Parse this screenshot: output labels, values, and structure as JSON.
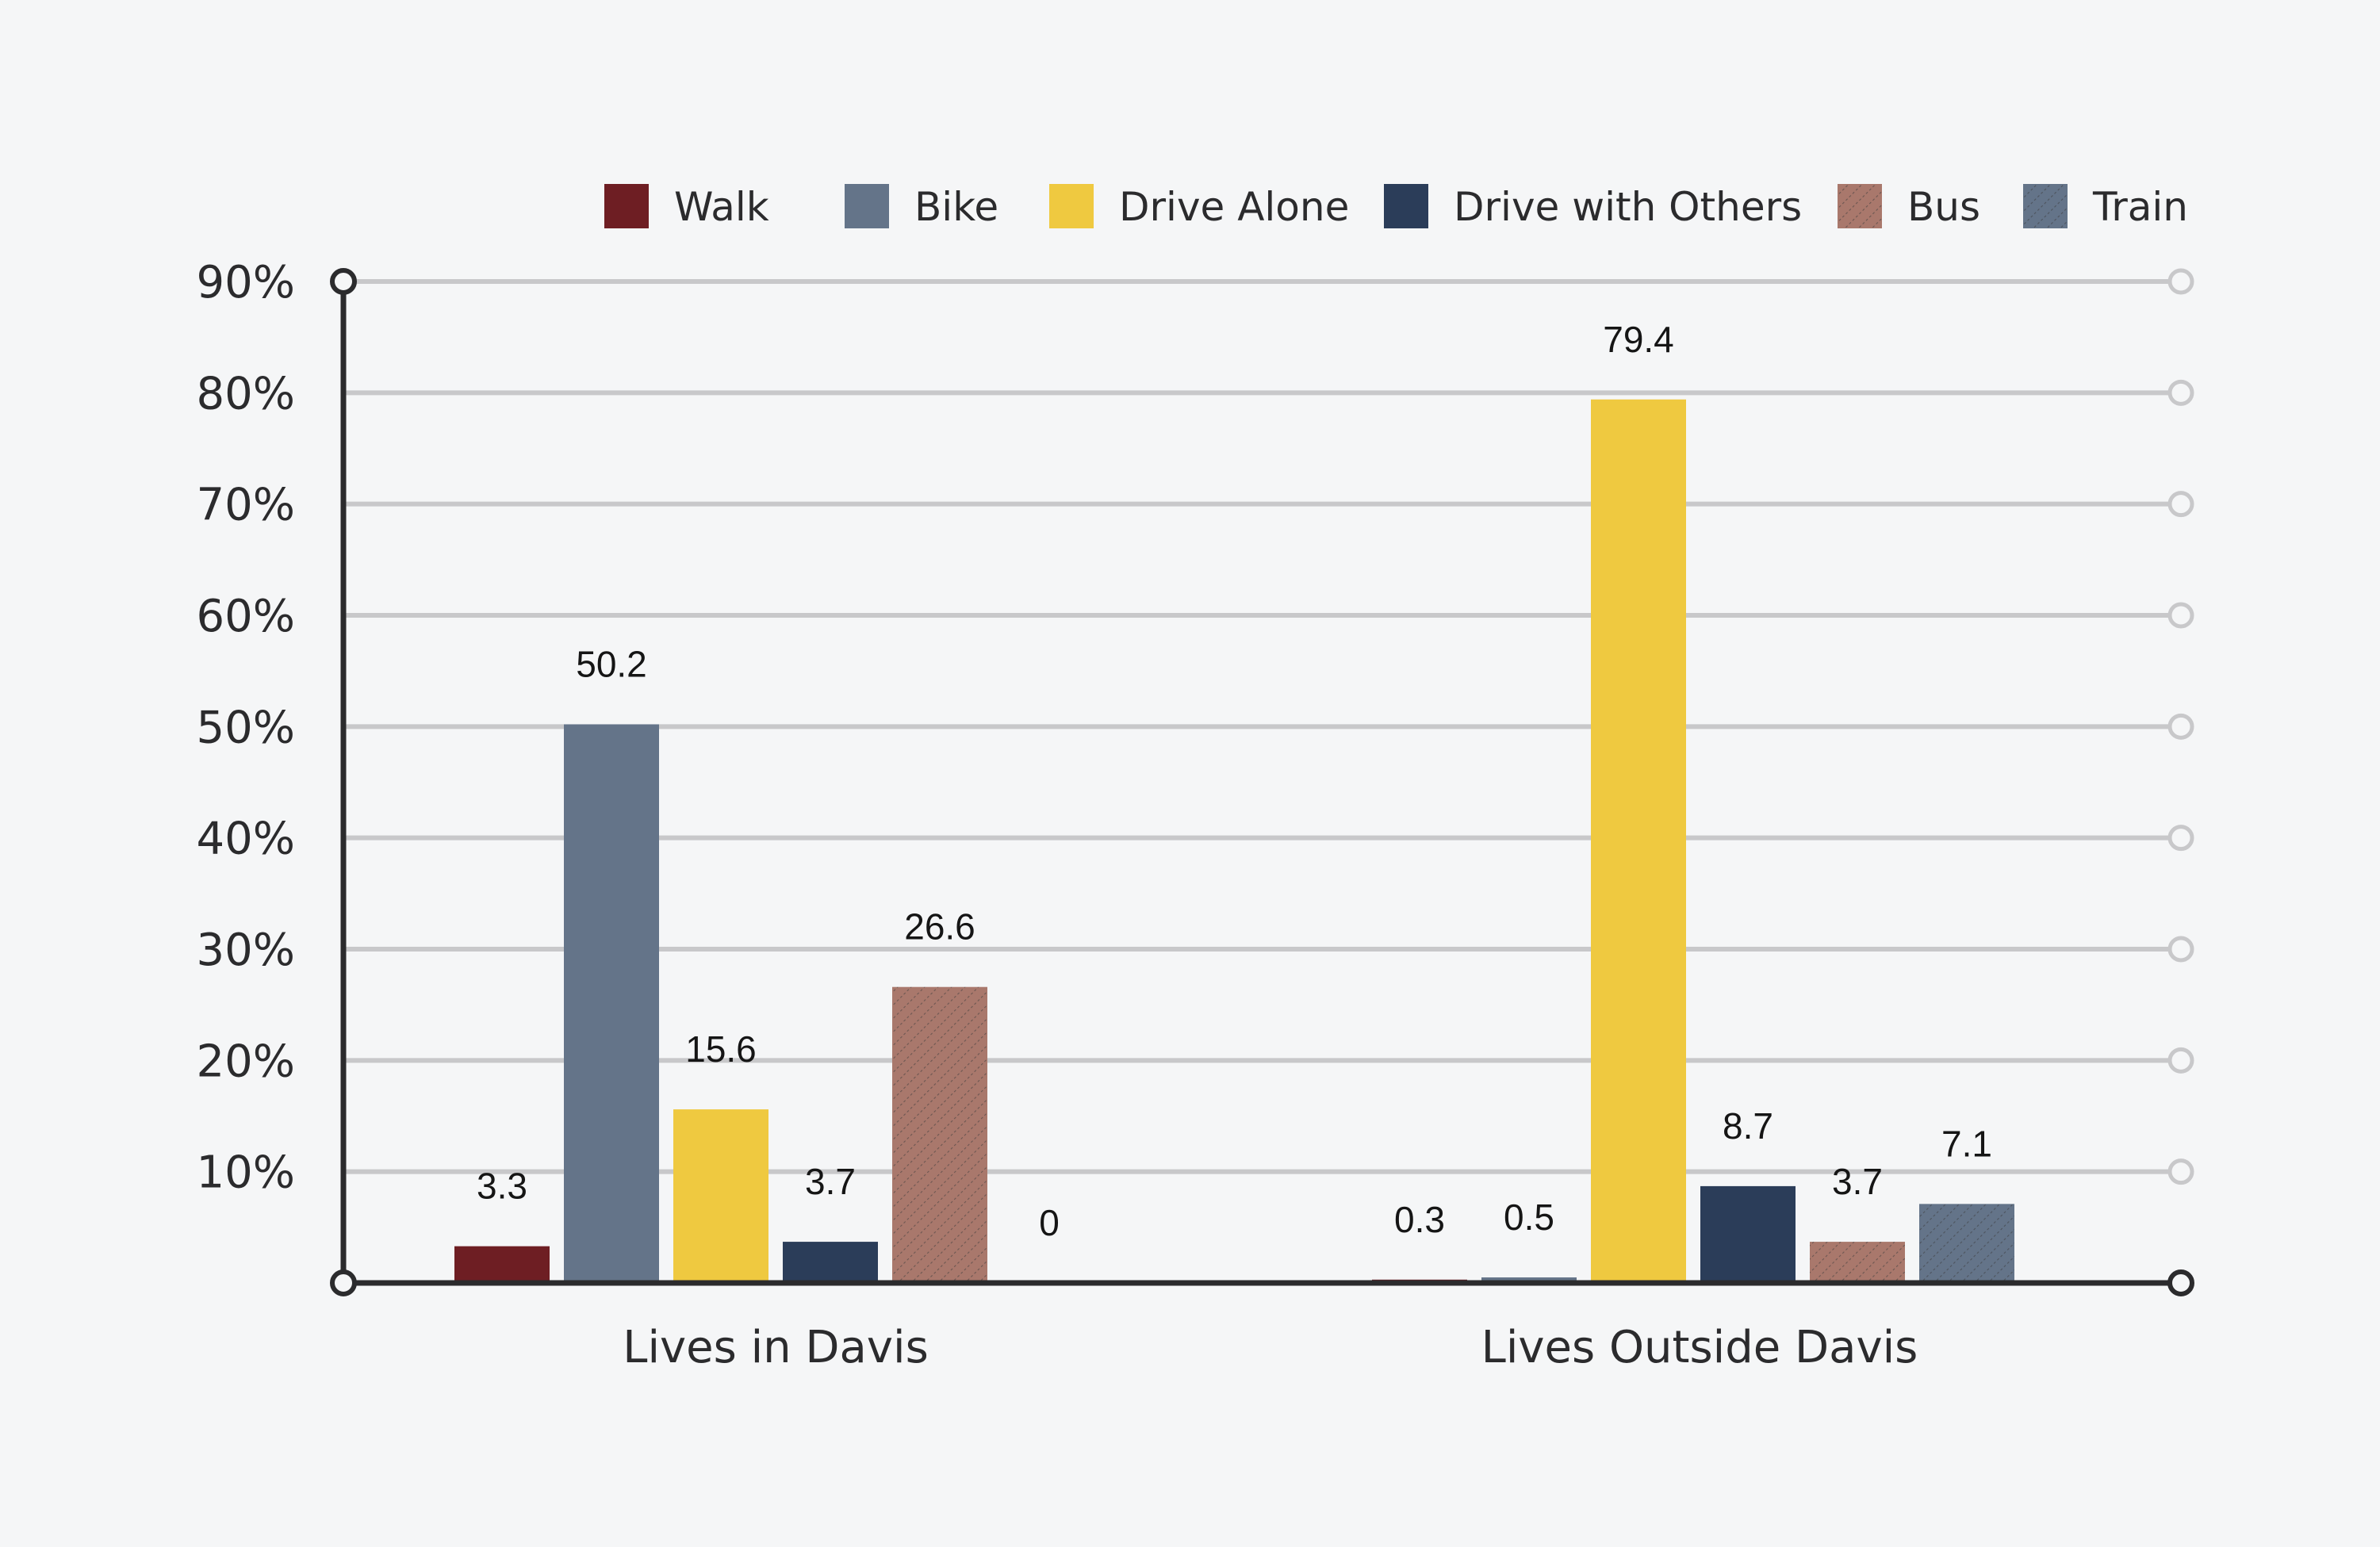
{
  "chart_data": {
    "type": "bar",
    "categories": [
      "Lives in Davis",
      "Lives Outside Davis"
    ],
    "series": [
      {
        "name": "Walk",
        "color": "#6e1e23",
        "pattern": "none",
        "values": [
          3.3,
          0.3
        ]
      },
      {
        "name": "Bike",
        "color": "#647489",
        "pattern": "none",
        "values": [
          50.2,
          0.5
        ]
      },
      {
        "name": "Drive Alone",
        "color": "#efc940",
        "pattern": "none",
        "values": [
          15.6,
          79.4
        ]
      },
      {
        "name": "Drive with Others",
        "color": "#2b3d59",
        "pattern": "none",
        "values": [
          3.7,
          8.7
        ]
      },
      {
        "name": "Bus",
        "color": "#a9786c",
        "pattern": "diagonal-hatch",
        "values": [
          26.6,
          3.7
        ]
      },
      {
        "name": "Train",
        "color": "#647489",
        "pattern": "diagonal-hatch",
        "values": [
          0,
          7.1
        ]
      }
    ],
    "y_ticks": [
      "10%",
      "20%",
      "30%",
      "40%",
      "50%",
      "60%",
      "70%",
      "80%",
      "90%"
    ],
    "ylim": [
      0,
      90
    ],
    "grid": true,
    "legend": "top",
    "axis_color": "#2b2b2d",
    "grid_color": "#c8c8ca"
  }
}
